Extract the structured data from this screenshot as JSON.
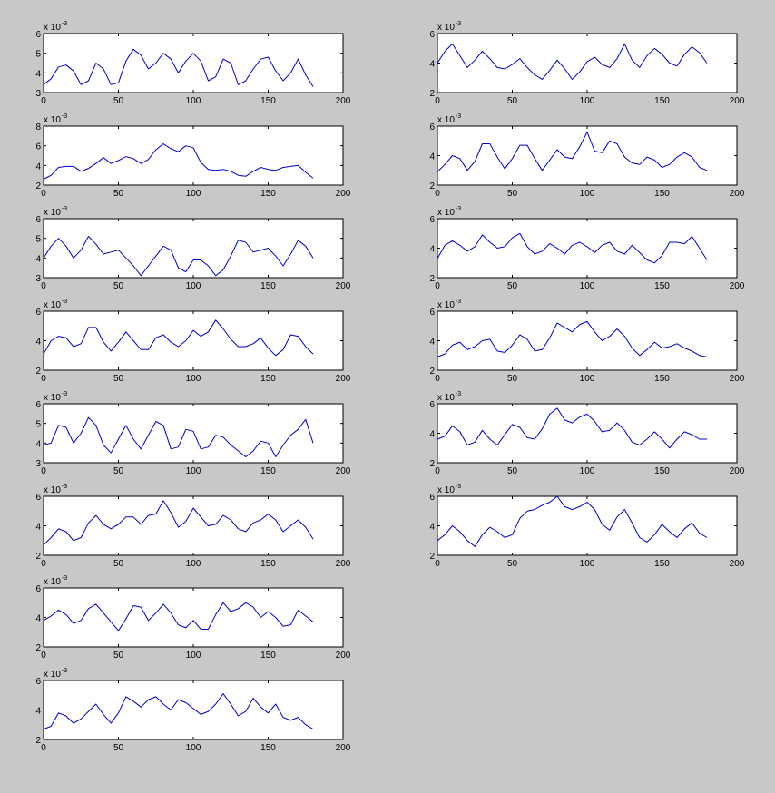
{
  "figure": {
    "background": "#c8c8c8",
    "axes_background": "#ffffff",
    "line_color": "#0000cc"
  },
  "chart_data": [
    {
      "type": "line",
      "exponent_label": "x 10",
      "exponent_power": "-3",
      "xlim": [
        0,
        200
      ],
      "ylim": [
        3,
        6
      ],
      "xticks": [
        0,
        50,
        100,
        150,
        200
      ],
      "yticks": [
        3,
        4,
        5,
        6
      ],
      "x": [
        0,
        5,
        10,
        15,
        20,
        25,
        30,
        35,
        40,
        45,
        50,
        55,
        60,
        65,
        70,
        75,
        80,
        85,
        90,
        95,
        100,
        105,
        110,
        115,
        120,
        125,
        130,
        135,
        140,
        145,
        150,
        155,
        160,
        165,
        170,
        175,
        180
      ],
      "y": [
        3.4,
        3.7,
        4.3,
        4.4,
        4.1,
        3.4,
        3.6,
        4.5,
        4.2,
        3.4,
        3.5,
        4.6,
        5.2,
        4.9,
        4.2,
        4.5,
        5.0,
        4.7,
        4.0,
        4.6,
        5.0,
        4.6,
        3.6,
        3.8,
        4.7,
        4.5,
        3.4,
        3.6,
        4.2,
        4.7,
        4.8,
        4.1,
        3.6,
        4.0,
        4.7,
        3.9,
        3.3
      ]
    },
    {
      "type": "line",
      "exponent_label": "x 10",
      "exponent_power": "-3",
      "xlim": [
        0,
        200
      ],
      "ylim": [
        2,
        8
      ],
      "xticks": [
        0,
        50,
        100,
        150,
        200
      ],
      "yticks": [
        2,
        4,
        6,
        8
      ],
      "x": [
        0,
        5,
        10,
        15,
        20,
        25,
        30,
        35,
        40,
        45,
        50,
        55,
        60,
        65,
        70,
        75,
        80,
        85,
        90,
        95,
        100,
        105,
        110,
        115,
        120,
        125,
        130,
        135,
        140,
        145,
        150,
        155,
        160,
        165,
        170,
        175,
        180
      ],
      "y": [
        2.6,
        3.0,
        3.8,
        3.9,
        3.9,
        3.4,
        3.7,
        4.2,
        4.8,
        4.2,
        4.5,
        4.9,
        4.7,
        4.2,
        4.6,
        5.6,
        6.2,
        5.7,
        5.4,
        6.0,
        5.8,
        4.3,
        3.6,
        3.5,
        3.6,
        3.4,
        3.0,
        2.9,
        3.4,
        3.8,
        3.6,
        3.5,
        3.8,
        3.9,
        4.0,
        3.3,
        2.7
      ]
    },
    {
      "type": "line",
      "exponent_label": "x 10",
      "exponent_power": "-3",
      "xlim": [
        0,
        200
      ],
      "ylim": [
        3,
        6
      ],
      "xticks": [
        0,
        50,
        100,
        150,
        200
      ],
      "yticks": [
        3,
        4,
        5,
        6
      ],
      "x": [
        0,
        5,
        10,
        15,
        20,
        25,
        30,
        35,
        40,
        45,
        50,
        55,
        60,
        65,
        70,
        75,
        80,
        85,
        90,
        95,
        100,
        105,
        110,
        115,
        120,
        125,
        130,
        135,
        140,
        145,
        150,
        155,
        160,
        165,
        170,
        175,
        180
      ],
      "y": [
        4.0,
        4.6,
        5.0,
        4.6,
        4.0,
        4.4,
        5.1,
        4.7,
        4.2,
        4.3,
        4.4,
        4.0,
        3.6,
        3.1,
        3.6,
        4.1,
        4.6,
        4.4,
        3.5,
        3.3,
        3.9,
        3.9,
        3.6,
        3.1,
        3.4,
        4.1,
        4.9,
        4.8,
        4.3,
        4.4,
        4.5,
        4.1,
        3.6,
        4.2,
        4.9,
        4.6,
        4.0
      ]
    },
    {
      "type": "line",
      "exponent_label": "x 10",
      "exponent_power": "-3",
      "xlim": [
        0,
        200
      ],
      "ylim": [
        2,
        6
      ],
      "xticks": [
        0,
        50,
        100,
        150,
        200
      ],
      "yticks": [
        2,
        4,
        6
      ],
      "x": [
        0,
        5,
        10,
        15,
        20,
        25,
        30,
        35,
        40,
        45,
        50,
        55,
        60,
        65,
        70,
        75,
        80,
        85,
        90,
        95,
        100,
        105,
        110,
        115,
        120,
        125,
        130,
        135,
        140,
        145,
        150,
        155,
        160,
        165,
        170,
        175,
        180
      ],
      "y": [
        3.1,
        4.0,
        4.3,
        4.2,
        3.6,
        3.8,
        4.9,
        4.9,
        3.9,
        3.3,
        3.9,
        4.6,
        4.0,
        3.4,
        3.4,
        4.2,
        4.4,
        3.9,
        3.6,
        4.0,
        4.7,
        4.3,
        4.6,
        5.4,
        4.8,
        4.1,
        3.6,
        3.6,
        3.8,
        4.2,
        3.5,
        3.0,
        3.4,
        4.4,
        4.3,
        3.6,
        3.1
      ]
    },
    {
      "type": "line",
      "exponent_label": "x 10",
      "exponent_power": "-3",
      "xlim": [
        0,
        200
      ],
      "ylim": [
        3,
        6
      ],
      "xticks": [
        0,
        50,
        100,
        150,
        200
      ],
      "yticks": [
        3,
        4,
        5,
        6
      ],
      "x": [
        0,
        5,
        10,
        15,
        20,
        25,
        30,
        35,
        40,
        45,
        50,
        55,
        60,
        65,
        70,
        75,
        80,
        85,
        90,
        95,
        100,
        105,
        110,
        115,
        120,
        125,
        130,
        135,
        140,
        145,
        150,
        155,
        160,
        165,
        170,
        175,
        180
      ],
      "y": [
        3.9,
        4.0,
        4.9,
        4.8,
        4.0,
        4.5,
        5.3,
        4.9,
        3.9,
        3.5,
        4.2,
        4.9,
        4.2,
        3.7,
        4.4,
        5.1,
        4.9,
        3.7,
        3.8,
        4.7,
        4.6,
        3.7,
        3.8,
        4.4,
        4.3,
        3.9,
        3.6,
        3.3,
        3.6,
        4.1,
        4.0,
        3.3,
        3.9,
        4.4,
        4.7,
        5.2,
        4.0
      ]
    },
    {
      "type": "line",
      "exponent_label": "x 10",
      "exponent_power": "-3",
      "xlim": [
        0,
        200
      ],
      "ylim": [
        2,
        6
      ],
      "xticks": [
        0,
        50,
        100,
        150,
        200
      ],
      "yticks": [
        2,
        4,
        6
      ],
      "x": [
        0,
        5,
        10,
        15,
        20,
        25,
        30,
        35,
        40,
        45,
        50,
        55,
        60,
        65,
        70,
        75,
        80,
        85,
        90,
        95,
        100,
        105,
        110,
        115,
        120,
        125,
        130,
        135,
        140,
        145,
        150,
        155,
        160,
        165,
        170,
        175,
        180
      ],
      "y": [
        2.7,
        3.2,
        3.8,
        3.6,
        3.0,
        3.2,
        4.2,
        4.7,
        4.1,
        3.8,
        4.1,
        4.6,
        4.6,
        4.1,
        4.7,
        4.8,
        5.7,
        4.9,
        3.9,
        4.3,
        5.2,
        4.6,
        4.0,
        4.1,
        4.7,
        4.4,
        3.8,
        3.6,
        4.2,
        4.4,
        4.8,
        4.4,
        3.6,
        4.0,
        4.4,
        3.9,
        3.1
      ]
    },
    {
      "type": "line",
      "exponent_label": "x 10",
      "exponent_power": "-3",
      "xlim": [
        0,
        200
      ],
      "ylim": [
        2,
        6
      ],
      "xticks": [
        0,
        50,
        100,
        150,
        200
      ],
      "yticks": [
        2,
        4,
        6
      ],
      "x": [
        0,
        5,
        10,
        15,
        20,
        25,
        30,
        35,
        40,
        45,
        50,
        55,
        60,
        65,
        70,
        75,
        80,
        85,
        90,
        95,
        100,
        105,
        110,
        115,
        120,
        125,
        130,
        135,
        140,
        145,
        150,
        155,
        160,
        165,
        170,
        175,
        180
      ],
      "y": [
        3.8,
        4.1,
        4.5,
        4.2,
        3.6,
        3.8,
        4.6,
        4.9,
        4.3,
        3.7,
        3.1,
        3.9,
        4.8,
        4.7,
        3.8,
        4.3,
        4.9,
        4.3,
        3.5,
        3.3,
        3.8,
        3.2,
        3.2,
        4.2,
        5.0,
        4.4,
        4.6,
        5.0,
        4.7,
        4.0,
        4.4,
        4.0,
        3.4,
        3.5,
        4.5,
        4.1,
        3.7
      ]
    },
    {
      "type": "line",
      "exponent_label": "x 10",
      "exponent_power": "-3",
      "xlim": [
        0,
        200
      ],
      "ylim": [
        2,
        6
      ],
      "xticks": [
        0,
        50,
        100,
        150,
        200
      ],
      "yticks": [
        2,
        4,
        6
      ],
      "x": [
        0,
        5,
        10,
        15,
        20,
        25,
        30,
        35,
        40,
        45,
        50,
        55,
        60,
        65,
        70,
        75,
        80,
        85,
        90,
        95,
        100,
        105,
        110,
        115,
        120,
        125,
        130,
        135,
        140,
        145,
        150,
        155,
        160,
        165,
        170,
        175,
        180
      ],
      "y": [
        2.7,
        2.9,
        3.8,
        3.6,
        3.1,
        3.4,
        3.9,
        4.4,
        3.7,
        3.1,
        3.8,
        4.9,
        4.6,
        4.2,
        4.7,
        4.9,
        4.4,
        4.0,
        4.7,
        4.5,
        4.1,
        3.7,
        3.9,
        4.4,
        5.1,
        4.4,
        3.6,
        3.9,
        4.8,
        4.2,
        3.8,
        4.4,
        3.5,
        3.3,
        3.5,
        3.0,
        2.7
      ]
    },
    {
      "type": "line",
      "exponent_label": "x 10",
      "exponent_power": "-3",
      "xlim": [
        0,
        200
      ],
      "ylim": [
        2,
        6
      ],
      "xticks": [
        0,
        50,
        100,
        150,
        200
      ],
      "yticks": [
        2,
        4,
        6
      ],
      "x": [
        0,
        5,
        10,
        15,
        20,
        25,
        30,
        35,
        40,
        45,
        50,
        55,
        60,
        65,
        70,
        75,
        80,
        85,
        90,
        95,
        100,
        105,
        110,
        115,
        120,
        125,
        130,
        135,
        140,
        145,
        150,
        155,
        160,
        165,
        170,
        175,
        180
      ],
      "y": [
        4.0,
        4.8,
        5.3,
        4.5,
        3.7,
        4.2,
        4.8,
        4.3,
        3.7,
        3.6,
        3.9,
        4.3,
        3.7,
        3.2,
        2.9,
        3.5,
        4.2,
        3.6,
        2.9,
        3.4,
        4.1,
        4.4,
        3.9,
        3.7,
        4.3,
        5.3,
        4.2,
        3.7,
        4.5,
        5.0,
        4.6,
        4.0,
        3.8,
        4.6,
        5.1,
        4.7,
        4.0
      ]
    },
    {
      "type": "line",
      "exponent_label": "x 10",
      "exponent_power": "-3",
      "xlim": [
        0,
        200
      ],
      "ylim": [
        2,
        6
      ],
      "xticks": [
        0,
        50,
        100,
        150,
        200
      ],
      "yticks": [
        2,
        4,
        6
      ],
      "x": [
        0,
        5,
        10,
        15,
        20,
        25,
        30,
        35,
        40,
        45,
        50,
        55,
        60,
        65,
        70,
        75,
        80,
        85,
        90,
        95,
        100,
        105,
        110,
        115,
        120,
        125,
        130,
        135,
        140,
        145,
        150,
        155,
        160,
        165,
        170,
        175,
        180
      ],
      "y": [
        2.9,
        3.4,
        4.0,
        3.8,
        3.0,
        3.6,
        4.8,
        4.8,
        3.9,
        3.1,
        3.8,
        4.7,
        4.7,
        3.8,
        3.0,
        3.7,
        4.4,
        3.9,
        3.8,
        4.6,
        5.6,
        4.3,
        4.2,
        5.0,
        4.8,
        3.9,
        3.5,
        3.4,
        3.9,
        3.7,
        3.2,
        3.4,
        3.9,
        4.2,
        3.9,
        3.2,
        3.0
      ]
    },
    {
      "type": "line",
      "exponent_label": "x 10",
      "exponent_power": "-3",
      "xlim": [
        0,
        200
      ],
      "ylim": [
        2,
        6
      ],
      "xticks": [
        0,
        50,
        100,
        150,
        200
      ],
      "yticks": [
        2,
        4,
        6
      ],
      "x": [
        0,
        5,
        10,
        15,
        20,
        25,
        30,
        35,
        40,
        45,
        50,
        55,
        60,
        65,
        70,
        75,
        80,
        85,
        90,
        95,
        100,
        105,
        110,
        115,
        120,
        125,
        130,
        135,
        140,
        145,
        150,
        155,
        160,
        165,
        170,
        175,
        180
      ],
      "y": [
        3.3,
        4.2,
        4.5,
        4.2,
        3.8,
        4.1,
        4.9,
        4.4,
        4.0,
        4.1,
        4.7,
        5.0,
        4.1,
        3.6,
        3.8,
        4.3,
        4.0,
        3.6,
        4.2,
        4.4,
        4.1,
        3.7,
        4.2,
        4.4,
        3.8,
        3.6,
        4.2,
        3.7,
        3.2,
        3.0,
        3.5,
        4.4,
        4.4,
        4.3,
        4.8,
        4.0,
        3.2
      ]
    },
    {
      "type": "line",
      "exponent_label": "x 10",
      "exponent_power": "-3",
      "xlim": [
        0,
        200
      ],
      "ylim": [
        2,
        6
      ],
      "xticks": [
        0,
        50,
        100,
        150,
        200
      ],
      "yticks": [
        2,
        4,
        6
      ],
      "x": [
        0,
        5,
        10,
        15,
        20,
        25,
        30,
        35,
        40,
        45,
        50,
        55,
        60,
        65,
        70,
        75,
        80,
        85,
        90,
        95,
        100,
        105,
        110,
        115,
        120,
        125,
        130,
        135,
        140,
        145,
        150,
        155,
        160,
        165,
        170,
        175,
        180
      ],
      "y": [
        2.9,
        3.1,
        3.7,
        3.9,
        3.4,
        3.6,
        4.0,
        4.1,
        3.3,
        3.2,
        3.7,
        4.4,
        4.1,
        3.3,
        3.4,
        4.2,
        5.2,
        4.9,
        4.6,
        5.1,
        5.3,
        4.6,
        4.0,
        4.3,
        4.8,
        4.3,
        3.5,
        3.0,
        3.4,
        3.9,
        3.5,
        3.6,
        3.8,
        3.5,
        3.3,
        3.0,
        2.9
      ]
    },
    {
      "type": "line",
      "exponent_label": "x 10",
      "exponent_power": "-3",
      "xlim": [
        0,
        200
      ],
      "ylim": [
        2,
        6
      ],
      "xticks": [
        0,
        50,
        100,
        150,
        200
      ],
      "yticks": [
        2,
        4,
        6
      ],
      "x": [
        0,
        5,
        10,
        15,
        20,
        25,
        30,
        35,
        40,
        45,
        50,
        55,
        60,
        65,
        70,
        75,
        80,
        85,
        90,
        95,
        100,
        105,
        110,
        115,
        120,
        125,
        130,
        135,
        140,
        145,
        150,
        155,
        160,
        165,
        170,
        175,
        180
      ],
      "y": [
        3.6,
        3.8,
        4.5,
        4.1,
        3.2,
        3.4,
        4.2,
        3.6,
        3.2,
        3.9,
        4.6,
        4.4,
        3.7,
        3.6,
        4.3,
        5.3,
        5.7,
        4.9,
        4.7,
        5.1,
        5.3,
        4.8,
        4.1,
        4.2,
        4.7,
        4.2,
        3.4,
        3.2,
        3.6,
        4.1,
        3.6,
        3.0,
        3.6,
        4.1,
        3.9,
        3.6,
        3.6
      ]
    },
    {
      "type": "line",
      "exponent_label": "x 10",
      "exponent_power": "-3",
      "xlim": [
        0,
        200
      ],
      "ylim": [
        2,
        6
      ],
      "xticks": [
        0,
        50,
        100,
        150,
        200
      ],
      "yticks": [
        2,
        4,
        6
      ],
      "x": [
        0,
        5,
        10,
        15,
        20,
        25,
        30,
        35,
        40,
        45,
        50,
        55,
        60,
        65,
        70,
        75,
        80,
        85,
        90,
        95,
        100,
        105,
        110,
        115,
        120,
        125,
        130,
        135,
        140,
        145,
        150,
        155,
        160,
        165,
        170,
        175,
        180
      ],
      "y": [
        3.0,
        3.4,
        4.0,
        3.6,
        3.0,
        2.6,
        3.4,
        3.9,
        3.6,
        3.2,
        3.4,
        4.5,
        5.0,
        5.1,
        5.4,
        5.6,
        6.0,
        5.3,
        5.1,
        5.3,
        5.6,
        5.1,
        4.1,
        3.7,
        4.6,
        5.1,
        4.2,
        3.2,
        2.9,
        3.4,
        4.1,
        3.6,
        3.2,
        3.8,
        4.2,
        3.5,
        3.2
      ]
    }
  ]
}
